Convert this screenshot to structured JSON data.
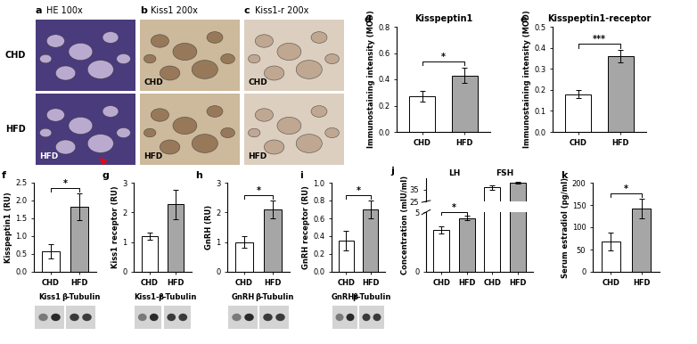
{
  "micrographs": {
    "row_labels": [
      "CHD",
      "HFD"
    ],
    "panels": [
      {
        "panel": "a",
        "title": "HE 100x",
        "inner_labels": [
          null,
          "HFD"
        ]
      },
      {
        "panel": "b",
        "title": "Kiss1 200x",
        "inner_labels": [
          "CHD",
          "HFD"
        ]
      },
      {
        "panel": "c",
        "title": "Kiss1-r 200x",
        "inner_labels": [
          "CHD",
          "HFD"
        ]
      }
    ]
  },
  "chart_data": [
    {
      "panel": "d",
      "type": "bar",
      "title": "Kisspeptin1",
      "ylabel": "Immunostaining intensity (MOD)",
      "categories": [
        "CHD",
        "HFD"
      ],
      "values": [
        0.27,
        0.43
      ],
      "errors": [
        0.04,
        0.06
      ],
      "colors": [
        "#ffffff",
        "#a6a6a6"
      ],
      "ylim": [
        0,
        0.8
      ],
      "yticks": [
        {
          "value": 0,
          "label": "0.0"
        },
        0.2,
        0.4,
        0.6,
        0.8
      ],
      "significance": [
        {
          "between": [
            0,
            1
          ],
          "label": "*"
        }
      ]
    },
    {
      "panel": "e",
      "type": "bar",
      "title": "Kisspeptin1-receptor",
      "ylabel": "Immunostaining intensity (MOD)",
      "categories": [
        "CHD",
        "HFD"
      ],
      "values": [
        0.18,
        0.36
      ],
      "errors": [
        0.02,
        0.03
      ],
      "colors": [
        "#ffffff",
        "#a6a6a6"
      ],
      "ylim": [
        0,
        0.5
      ],
      "yticks": [
        {
          "value": 0,
          "label": "0.0"
        },
        0.1,
        0.2,
        0.3,
        0.4,
        0.5
      ],
      "significance": [
        {
          "between": [
            0,
            1
          ],
          "label": "***"
        }
      ]
    },
    {
      "panel": "f",
      "type": "bar",
      "ylabel": "Kisspeptin1 (RU)",
      "categories": [
        "CHD",
        "HFD"
      ],
      "values": [
        0.57,
        1.82
      ],
      "errors": [
        0.2,
        0.38
      ],
      "colors": [
        "#ffffff",
        "#a6a6a6"
      ],
      "ylim": [
        0,
        2.5
      ],
      "yticks": [
        {
          "value": 0,
          "label": "0.0"
        },
        0.5,
        {
          "value": 1,
          "label": "1.0"
        },
        1.5,
        {
          "value": 2,
          "label": "2.0"
        },
        2.5
      ],
      "significance": [
        {
          "between": [
            0,
            1
          ],
          "label": "*"
        }
      ],
      "blot_labels": [
        "Kiss1",
        "β-Tubulin"
      ]
    },
    {
      "panel": "g",
      "type": "bar",
      "ylabel": "Kiss1 receptor (RU)",
      "categories": [
        "CHD",
        "HFD"
      ],
      "values": [
        1.2,
        2.27
      ],
      "errors": [
        0.12,
        0.5
      ],
      "colors": [
        "#ffffff",
        "#a6a6a6"
      ],
      "ylim": [
        0,
        3
      ],
      "yticks": [
        0,
        1,
        2,
        3
      ],
      "significance": [],
      "blot_labels": [
        "Kiss1-r",
        "β-Tubulin"
      ]
    },
    {
      "panel": "h",
      "type": "bar",
      "ylabel": "GnRH (RU)",
      "categories": [
        "CHD",
        "HFD"
      ],
      "values": [
        1.0,
        2.1
      ],
      "errors": [
        0.2,
        0.3
      ],
      "colors": [
        "#ffffff",
        "#a6a6a6"
      ],
      "ylim": [
        0,
        3
      ],
      "yticks": [
        0,
        1,
        2,
        3
      ],
      "significance": [
        {
          "between": [
            0,
            1
          ],
          "label": "*"
        }
      ],
      "blot_labels": [
        "GnRH",
        "β-Tubulin"
      ]
    },
    {
      "panel": "i",
      "type": "bar",
      "ylabel": "GnRH receptor (RU)",
      "categories": [
        "CHD",
        "HFD"
      ],
      "values": [
        0.35,
        0.7
      ],
      "errors": [
        0.11,
        0.1
      ],
      "colors": [
        "#ffffff",
        "#a6a6a6"
      ],
      "ylim": [
        0,
        1.0
      ],
      "yticks": [
        {
          "value": 0,
          "label": "0.0"
        },
        0.2,
        0.4,
        0.6,
        0.8,
        {
          "value": 1.0,
          "label": "1.0"
        }
      ],
      "significance": [
        {
          "between": [
            0,
            1
          ],
          "label": "*"
        }
      ],
      "blot_labels": [
        "GnRHr",
        "β-Tubulin"
      ]
    },
    {
      "panel": "j",
      "type": "bar",
      "ylabel": "Concentration (mIU/ml)",
      "categories": [
        "CHD",
        "HFD",
        "CHD",
        "HFD"
      ],
      "values": [
        3.5,
        4.5,
        37,
        41
      ],
      "errors": [
        0.3,
        0.2,
        2,
        1
      ],
      "colors": [
        "#ffffff",
        "#a6a6a6",
        "#ffffff",
        "#a6a6a6"
      ],
      "groups": [
        {
          "label": "LH",
          "members": [
            0,
            1
          ]
        },
        {
          "label": "FSH",
          "members": [
            2,
            3
          ]
        }
      ],
      "ylim": [
        0,
        45
      ],
      "ybreak": [
        5,
        25
      ],
      "yticks": [
        0,
        5,
        25,
        35
      ],
      "significance": [
        {
          "between": [
            0,
            1
          ],
          "label": "*"
        }
      ]
    },
    {
      "panel": "k",
      "type": "bar",
      "ylabel": "Serum estradiol (pg/ml)",
      "categories": [
        "CHD",
        "HFD"
      ],
      "values": [
        68,
        142
      ],
      "errors": [
        20,
        22
      ],
      "colors": [
        "#ffffff",
        "#a6a6a6"
      ],
      "ylim": [
        0,
        200
      ],
      "yticks": [
        0,
        50,
        100,
        150,
        200
      ],
      "significance": [
        {
          "between": [
            0,
            1
          ],
          "label": "*"
        }
      ]
    }
  ]
}
